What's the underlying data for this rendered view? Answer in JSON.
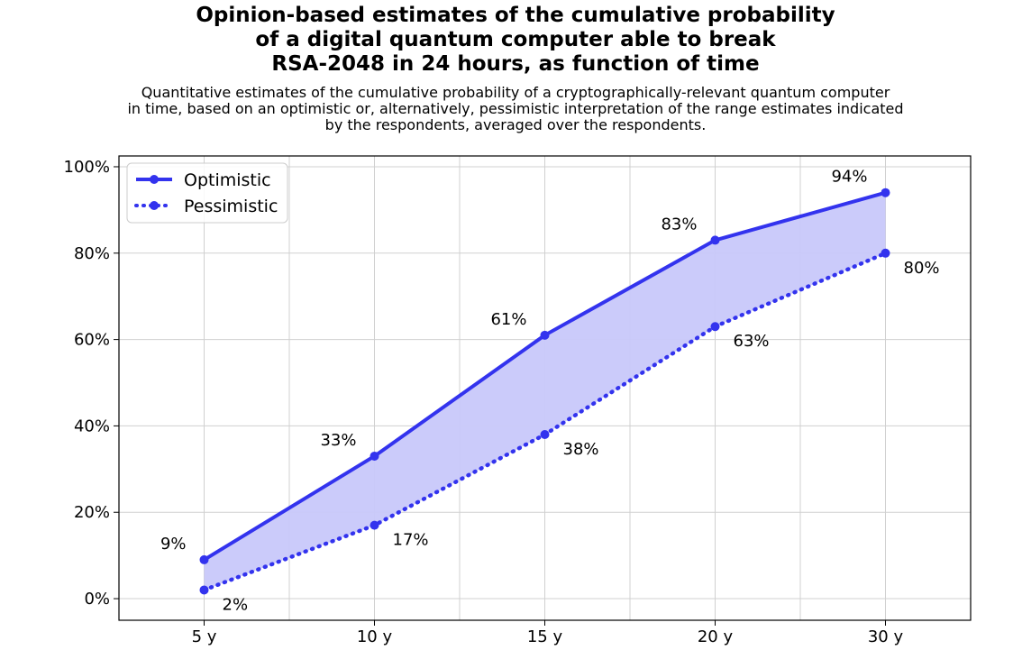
{
  "title": "Opinion-based estimates of the cumulative probability\nof a digital quantum computer able to break\nRSA-2048 in 24 hours, as function of time",
  "subtitle": "Quantitative estimates of the cumulative probability of a cryptographically-relevant quantum computer\nin time, based on an optimistic or, alternatively, pessimistic interpretation of the range estimates indicated\nby the respondents, averaged over the respondents.",
  "colors": {
    "series": "#3333ee",
    "fill": "#c8c8fa",
    "grid": "#d0d0d0"
  },
  "chart_data": {
    "type": "line",
    "categories": [
      "5 y",
      "10 y",
      "15 y",
      "20 y",
      "30 y"
    ],
    "x_positions": [
      5,
      10,
      15,
      20,
      25
    ],
    "xlim": [
      2.5,
      27.5
    ],
    "ylim": [
      -0.05,
      1.025
    ],
    "yticks": [
      0,
      0.2,
      0.4,
      0.6,
      0.8,
      1.0
    ],
    "ytick_labels": [
      "0%",
      "20%",
      "40%",
      "60%",
      "80%",
      "100%"
    ],
    "grid": true,
    "legend_position": "top-left",
    "series": [
      {
        "name": "Optimistic",
        "style": "solid",
        "values": [
          0.09,
          0.33,
          0.61,
          0.83,
          0.94
        ],
        "labels": [
          "9%",
          "33%",
          "61%",
          "83%",
          "94%"
        ]
      },
      {
        "name": "Pessimistic",
        "style": "dotted",
        "values": [
          0.02,
          0.17,
          0.38,
          0.63,
          0.8
        ],
        "labels": [
          "2%",
          "17%",
          "38%",
          "63%",
          "80%"
        ]
      }
    ],
    "shaded_between": [
      "Optimistic",
      "Pessimistic"
    ]
  }
}
